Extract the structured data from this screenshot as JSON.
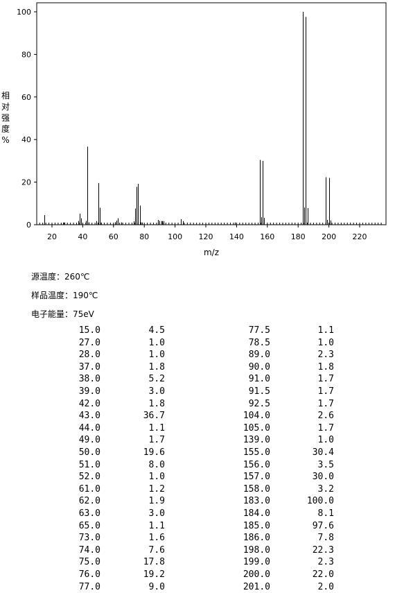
{
  "chart_data": {
    "type": "bar",
    "xlabel": "m/z",
    "ylabel": [
      "相",
      "对",
      "强",
      "度",
      "%"
    ],
    "xlim": [
      10,
      235
    ],
    "ylim": [
      0,
      105
    ],
    "xticks": [
      20,
      40,
      60,
      80,
      100,
      120,
      140,
      160,
      180,
      200,
      220
    ],
    "yticks": [
      0,
      20,
      40,
      60,
      80,
      100
    ],
    "peaks": [
      [
        15.0,
        4.5
      ],
      [
        27.0,
        1.0
      ],
      [
        28.0,
        1.0
      ],
      [
        37.0,
        1.8
      ],
      [
        38.0,
        5.2
      ],
      [
        39.0,
        3.0
      ],
      [
        42.0,
        1.8
      ],
      [
        43.0,
        36.7
      ],
      [
        44.0,
        1.1
      ],
      [
        49.0,
        1.7
      ],
      [
        50.0,
        19.6
      ],
      [
        51.0,
        8.0
      ],
      [
        52.0,
        1.0
      ],
      [
        61.0,
        1.2
      ],
      [
        62.0,
        1.9
      ],
      [
        63.0,
        3.0
      ],
      [
        65.0,
        1.1
      ],
      [
        73.0,
        1.6
      ],
      [
        74.0,
        7.6
      ],
      [
        75.0,
        17.8
      ],
      [
        76.0,
        19.2
      ],
      [
        77.0,
        9.0
      ],
      [
        77.5,
        1.1
      ],
      [
        78.5,
        1.0
      ],
      [
        89.0,
        2.3
      ],
      [
        90.0,
        1.8
      ],
      [
        91.0,
        1.7
      ],
      [
        91.5,
        1.7
      ],
      [
        92.5,
        1.7
      ],
      [
        104.0,
        2.6
      ],
      [
        105.0,
        1.7
      ],
      [
        139.0,
        1.0
      ],
      [
        155.0,
        30.4
      ],
      [
        156.0,
        3.5
      ],
      [
        157.0,
        30.0
      ],
      [
        158.0,
        3.2
      ],
      [
        183.0,
        100.0
      ],
      [
        184.0,
        8.1
      ],
      [
        185.0,
        97.6
      ],
      [
        186.0,
        7.8
      ],
      [
        198.0,
        22.3
      ],
      [
        199.0,
        2.3
      ],
      [
        200.0,
        22.0
      ],
      [
        201.0,
        2.0
      ]
    ]
  },
  "conditions": {
    "source_temp": "源温度：260℃",
    "sample_temp": "样品温度：190℃",
    "electron_energy": "电子能量：75eV"
  },
  "table": {
    "left": [
      [
        "15.0",
        "4.5"
      ],
      [
        "27.0",
        "1.0"
      ],
      [
        "28.0",
        "1.0"
      ],
      [
        "37.0",
        "1.8"
      ],
      [
        "38.0",
        "5.2"
      ],
      [
        "39.0",
        "3.0"
      ],
      [
        "42.0",
        "1.8"
      ],
      [
        "43.0",
        "36.7"
      ],
      [
        "44.0",
        "1.1"
      ],
      [
        "49.0",
        "1.7"
      ],
      [
        "50.0",
        "19.6"
      ],
      [
        "51.0",
        "8.0"
      ],
      [
        "52.0",
        "1.0"
      ],
      [
        "61.0",
        "1.2"
      ],
      [
        "62.0",
        "1.9"
      ],
      [
        "63.0",
        "3.0"
      ],
      [
        "65.0",
        "1.1"
      ],
      [
        "73.0",
        "1.6"
      ],
      [
        "74.0",
        "7.6"
      ],
      [
        "75.0",
        "17.8"
      ],
      [
        "76.0",
        "19.2"
      ],
      [
        "77.0",
        "9.0"
      ]
    ],
    "right": [
      [
        "77.5",
        "1.1"
      ],
      [
        "78.5",
        "1.0"
      ],
      [
        "89.0",
        "2.3"
      ],
      [
        "90.0",
        "1.8"
      ],
      [
        "91.0",
        "1.7"
      ],
      [
        "91.5",
        "1.7"
      ],
      [
        "92.5",
        "1.7"
      ],
      [
        "104.0",
        "2.6"
      ],
      [
        "105.0",
        "1.7"
      ],
      [
        "139.0",
        "1.0"
      ],
      [
        "155.0",
        "30.4"
      ],
      [
        "156.0",
        "3.5"
      ],
      [
        "157.0",
        "30.0"
      ],
      [
        "158.0",
        "3.2"
      ],
      [
        "183.0",
        "100.0"
      ],
      [
        "184.0",
        "8.1"
      ],
      [
        "185.0",
        "97.6"
      ],
      [
        "186.0",
        "7.8"
      ],
      [
        "198.0",
        "22.3"
      ],
      [
        "199.0",
        "2.3"
      ],
      [
        "200.0",
        "22.0"
      ],
      [
        "201.0",
        "2.0"
      ]
    ]
  }
}
